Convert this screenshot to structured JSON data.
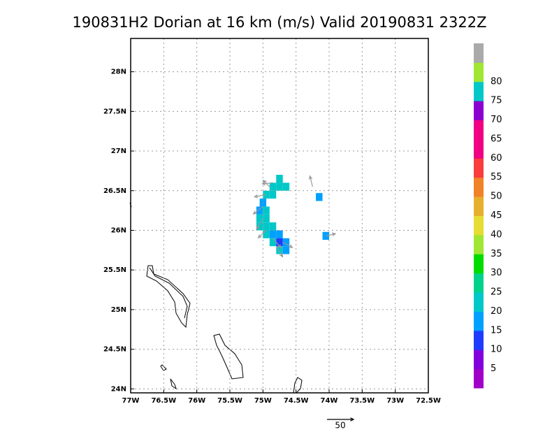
{
  "chart_data": {
    "type": "wind-map",
    "title": "190831H2 Dorian at 16 km (m/s) Valid 20190831  2322Z",
    "xlim": [
      -77,
      -72.5
    ],
    "xticks": [
      {
        "value": -77,
        "label": "77W"
      },
      {
        "value": -76.5,
        "label": "76.5W"
      },
      {
        "value": -76,
        "label": "76W"
      },
      {
        "value": -75.5,
        "label": "75.5W"
      },
      {
        "value": -75,
        "label": "75W"
      },
      {
        "value": -74.5,
        "label": "74.5W"
      },
      {
        "value": -74,
        "label": "74W"
      },
      {
        "value": -73.5,
        "label": "73.5W"
      },
      {
        "value": -73,
        "label": "73W"
      },
      {
        "value": -72.5,
        "label": "72.5W"
      }
    ],
    "ylim": [
      23.95,
      28.42
    ],
    "yticks": [
      {
        "value": 24,
        "label": "24N"
      },
      {
        "value": 24.5,
        "label": "24.5N"
      },
      {
        "value": 25,
        "label": "25N"
      },
      {
        "value": 25.5,
        "label": "25.5N"
      },
      {
        "value": 26,
        "label": "26N"
      },
      {
        "value": 26.5,
        "label": "26.5N"
      },
      {
        "value": 27,
        "label": "27N"
      },
      {
        "value": 27.5,
        "label": "27.5N"
      },
      {
        "value": 28,
        "label": "28N"
      }
    ],
    "grid": true,
    "levels": [
      5,
      10,
      15,
      20,
      25,
      30,
      35,
      40,
      45,
      50,
      55,
      60,
      65,
      70,
      75,
      80
    ],
    "colors": [
      "#a000c8",
      "#8200dc",
      "#1e3cff",
      "#00a0ff",
      "#00c8c8",
      "#00d28c",
      "#00dc00",
      "#a0e632",
      "#e6dc32",
      "#e6af2d",
      "#f08228",
      "#fa3c3c",
      "#f00082",
      "#f00082",
      "#8c00d0",
      "#00c8c8",
      "#a0e632",
      "#aaaaaa"
    ],
    "cells": [
      {
        "lon": -74.75,
        "lat": 26.65,
        "value": 22
      },
      {
        "lon": -74.85,
        "lat": 26.55,
        "value": 22
      },
      {
        "lon": -74.75,
        "lat": 26.55,
        "value": 22
      },
      {
        "lon": -74.65,
        "lat": 26.55,
        "value": 20
      },
      {
        "lon": -74.95,
        "lat": 26.45,
        "value": 20
      },
      {
        "lon": -74.85,
        "lat": 26.45,
        "value": 22
      },
      {
        "lon": -75.0,
        "lat": 26.35,
        "value": 18
      },
      {
        "lon": -75.05,
        "lat": 26.25,
        "value": 15
      },
      {
        "lon": -74.95,
        "lat": 26.25,
        "value": 20
      },
      {
        "lon": -75.05,
        "lat": 26.15,
        "value": 20
      },
      {
        "lon": -74.95,
        "lat": 26.15,
        "value": 22
      },
      {
        "lon": -75.05,
        "lat": 26.05,
        "value": 22
      },
      {
        "lon": -74.95,
        "lat": 26.05,
        "value": 24
      },
      {
        "lon": -74.85,
        "lat": 26.05,
        "value": 22
      },
      {
        "lon": -74.95,
        "lat": 25.95,
        "value": 20
      },
      {
        "lon": -74.85,
        "lat": 25.95,
        "value": 15
      },
      {
        "lon": -74.75,
        "lat": 25.95,
        "value": 18
      },
      {
        "lon": -74.85,
        "lat": 25.85,
        "value": 22
      },
      {
        "lon": -74.75,
        "lat": 25.85,
        "value": 14
      },
      {
        "lon": -74.65,
        "lat": 25.85,
        "value": 16
      },
      {
        "lon": -74.75,
        "lat": 25.75,
        "value": 20
      },
      {
        "lon": -74.65,
        "lat": 25.75,
        "value": 18
      },
      {
        "lon": -74.15,
        "lat": 26.42,
        "value": 15
      },
      {
        "lon": -74.05,
        "lat": 25.93,
        "value": 18
      }
    ],
    "vectors": [
      {
        "lon": -74.85,
        "lat": 26.6,
        "u": -20,
        "v": -2
      },
      {
        "lon": -74.95,
        "lat": 26.45,
        "u": -22,
        "v": -4
      },
      {
        "lon": -74.25,
        "lat": 26.55,
        "u": -5,
        "v": 20
      },
      {
        "lon": -75.0,
        "lat": 26.3,
        "u": -18,
        "v": -14
      },
      {
        "lon": -75.0,
        "lat": 26.15,
        "u": -12,
        "v": -20
      },
      {
        "lon": -74.95,
        "lat": 26.0,
        "u": -15,
        "v": -14
      },
      {
        "lon": -74.85,
        "lat": 25.9,
        "u": 15,
        "v": -18
      },
      {
        "lon": -74.8,
        "lat": 25.8,
        "u": 12,
        "v": -20
      },
      {
        "lon": -74.7,
        "lat": 25.85,
        "u": 18,
        "v": -10
      },
      {
        "lon": -74.05,
        "lat": 25.93,
        "u": 18,
        "v": 4
      },
      {
        "lon": -74.9,
        "lat": 26.55,
        "u": -12,
        "v": 12
      }
    ],
    "ref_vector": 50
  }
}
